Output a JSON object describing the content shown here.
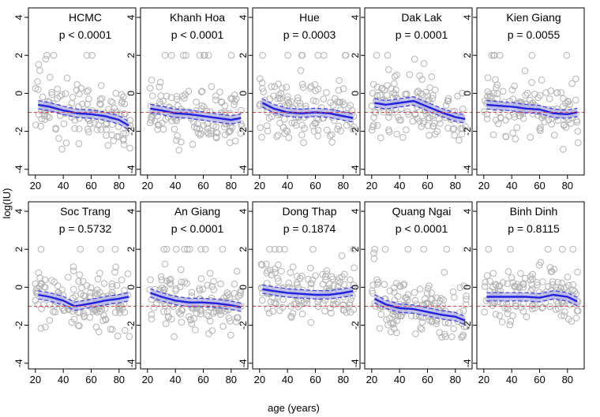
{
  "chart_data": {
    "type": "scatter",
    "xlabel": "age (years)",
    "ylabel": "log(IU)",
    "xlim": [
      15,
      92
    ],
    "ylim": [
      -4.3,
      4.5
    ],
    "xticks": [
      "20",
      "40",
      "60",
      "80"
    ],
    "yticks": [
      "-4",
      "-2",
      "0",
      "2",
      "4"
    ],
    "reference_line": -1,
    "colors": {
      "points": "#b3b3b3",
      "fit": "#2020e0",
      "band": "#b4b4e6",
      "band_edge": "#3a3aea",
      "reference": "#e04040"
    },
    "panels": [
      {
        "title": "HCMC",
        "pvalue": "p < 0.0001",
        "trend": [
          [
            22,
            -0.6
          ],
          [
            30,
            -0.7
          ],
          [
            40,
            -0.9
          ],
          [
            50,
            -1.05
          ],
          [
            60,
            -1.1
          ],
          [
            70,
            -1.2
          ],
          [
            80,
            -1.4
          ],
          [
            87,
            -1.7
          ]
        ]
      },
      {
        "title": "Khanh Hoa",
        "pvalue": "p < 0.0001",
        "trend": [
          [
            22,
            -0.8
          ],
          [
            30,
            -0.9
          ],
          [
            40,
            -1.05
          ],
          [
            50,
            -1.1
          ],
          [
            60,
            -1.2
          ],
          [
            70,
            -1.3
          ],
          [
            80,
            -1.4
          ],
          [
            87,
            -1.3
          ]
        ]
      },
      {
        "title": "Hue",
        "pvalue": "p = 0.0003",
        "trend": [
          [
            22,
            -0.5
          ],
          [
            30,
            -0.8
          ],
          [
            40,
            -1.0
          ],
          [
            50,
            -1.05
          ],
          [
            60,
            -1.0
          ],
          [
            70,
            -1.05
          ],
          [
            80,
            -1.2
          ],
          [
            87,
            -1.3
          ]
        ]
      },
      {
        "title": "Dak Lak",
        "pvalue": "p = 0.0001",
        "trend": [
          [
            22,
            -0.5
          ],
          [
            30,
            -0.6
          ],
          [
            40,
            -0.5
          ],
          [
            50,
            -0.4
          ],
          [
            60,
            -0.7
          ],
          [
            70,
            -1.0
          ],
          [
            80,
            -1.25
          ],
          [
            87,
            -1.35
          ]
        ]
      },
      {
        "title": "Kien Giang",
        "pvalue": "p = 0.0055",
        "trend": [
          [
            22,
            -0.6
          ],
          [
            30,
            -0.65
          ],
          [
            40,
            -0.7
          ],
          [
            50,
            -0.8
          ],
          [
            60,
            -0.85
          ],
          [
            70,
            -1.05
          ],
          [
            80,
            -1.1
          ],
          [
            87,
            -1.0
          ]
        ]
      },
      {
        "title": "Soc Trang",
        "pvalue": "p = 0.5732",
        "trend": [
          [
            22,
            -0.4
          ],
          [
            30,
            -0.5
          ],
          [
            40,
            -0.7
          ],
          [
            48,
            -1.0
          ],
          [
            60,
            -0.85
          ],
          [
            70,
            -0.7
          ],
          [
            80,
            -0.6
          ],
          [
            87,
            -0.5
          ]
        ]
      },
      {
        "title": "An Giang",
        "pvalue": "p < 0.0001",
        "trend": [
          [
            22,
            -0.3
          ],
          [
            30,
            -0.5
          ],
          [
            40,
            -0.7
          ],
          [
            50,
            -0.8
          ],
          [
            60,
            -0.8
          ],
          [
            70,
            -0.85
          ],
          [
            80,
            -0.95
          ],
          [
            87,
            -1.05
          ]
        ]
      },
      {
        "title": "Dong Thap",
        "pvalue": "p = 0.1874",
        "trend": [
          [
            22,
            -0.1
          ],
          [
            30,
            -0.2
          ],
          [
            40,
            -0.3
          ],
          [
            50,
            -0.35
          ],
          [
            60,
            -0.4
          ],
          [
            70,
            -0.4
          ],
          [
            80,
            -0.3
          ],
          [
            87,
            -0.2
          ]
        ]
      },
      {
        "title": "Quang Ngai",
        "pvalue": "p < 0.0001",
        "trend": [
          [
            22,
            -0.6
          ],
          [
            30,
            -0.9
          ],
          [
            40,
            -1.1
          ],
          [
            50,
            -1.15
          ],
          [
            60,
            -1.3
          ],
          [
            70,
            -1.45
          ],
          [
            80,
            -1.55
          ],
          [
            87,
            -1.75
          ]
        ]
      },
      {
        "title": "Binh Dinh",
        "pvalue": "p = 0.8115",
        "trend": [
          [
            22,
            -0.5
          ],
          [
            30,
            -0.5
          ],
          [
            40,
            -0.5
          ],
          [
            50,
            -0.5
          ],
          [
            60,
            -0.55
          ],
          [
            70,
            -0.4
          ],
          [
            80,
            -0.5
          ],
          [
            87,
            -0.75
          ]
        ]
      }
    ]
  }
}
